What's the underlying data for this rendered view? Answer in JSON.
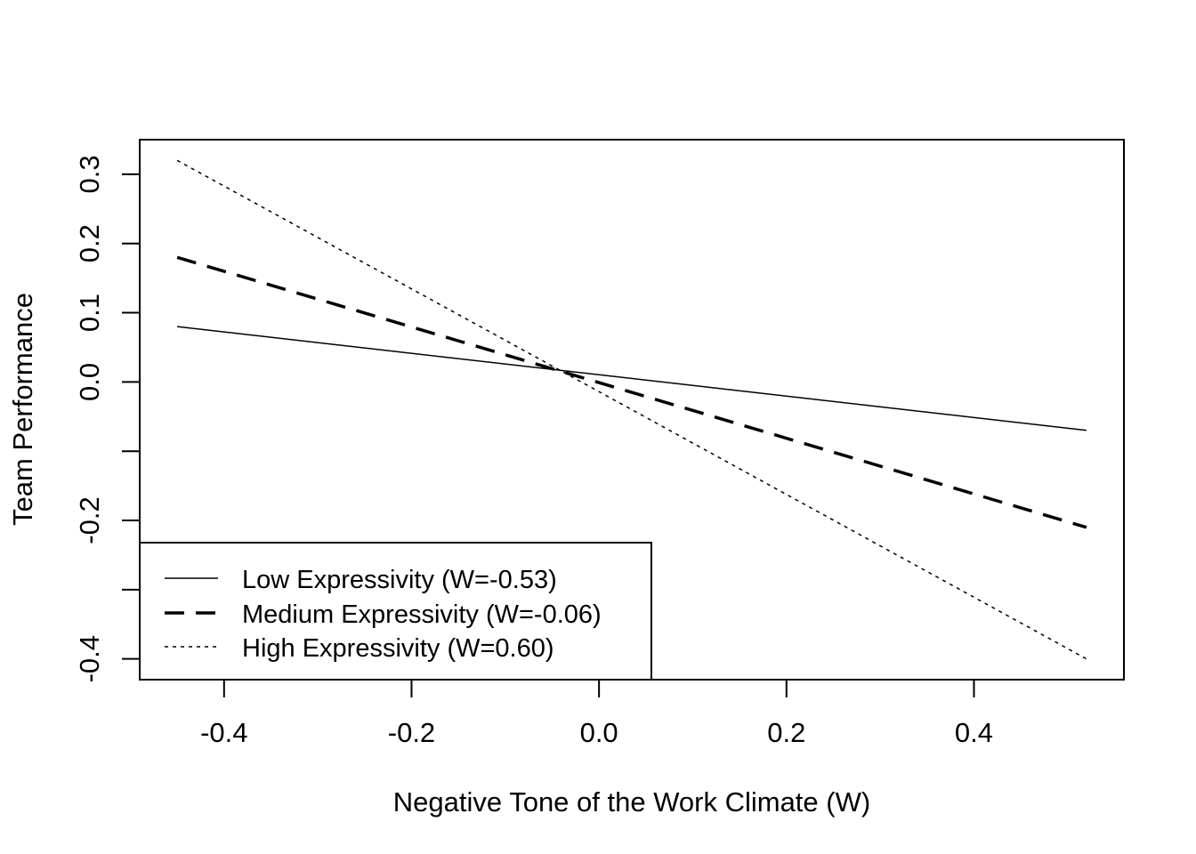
{
  "chart_data": {
    "type": "line",
    "title": "",
    "xlabel": "Negative Tone of the Work Climate (W)",
    "ylabel": "Team Performance",
    "xlim": [
      -0.49,
      0.56
    ],
    "ylim": [
      -0.43,
      0.35
    ],
    "x_ticks": [
      -0.4,
      -0.2,
      0.0,
      0.2,
      0.4
    ],
    "x_tick_labels": [
      "-0.4",
      "-0.2",
      "0.0",
      "0.2",
      "0.4"
    ],
    "y_ticks": [
      -0.4,
      -0.3,
      -0.2,
      -0.1,
      0.0,
      0.1,
      0.2,
      0.3
    ],
    "y_tick_labels": [
      "-0.4",
      "",
      "-0.2",
      "",
      "0.0",
      "0.1",
      "0.2",
      "0.3"
    ],
    "grid": false,
    "legend_position": "bottom-left",
    "series": [
      {
        "name": "Low Expressivity (W=-0.53)",
        "style": "solid",
        "x": [
          -0.45,
          0.52
        ],
        "y": [
          0.08,
          -0.07
        ]
      },
      {
        "name": "Medium Expressivity (W=-0.06)",
        "style": "dashed",
        "x": [
          -0.45,
          0.52
        ],
        "y": [
          0.18,
          -0.21
        ]
      },
      {
        "name": "High Expressivity (W=0.60)",
        "style": "dotted",
        "x": [
          -0.45,
          0.52
        ],
        "y": [
          0.32,
          -0.4
        ]
      }
    ]
  }
}
